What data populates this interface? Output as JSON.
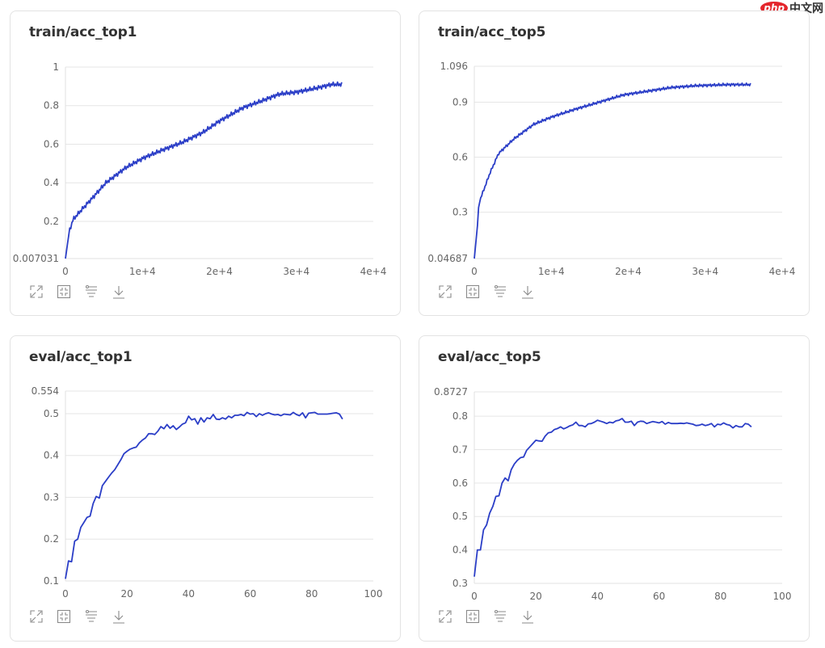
{
  "watermark": {
    "badge": "php",
    "text": "中文网"
  },
  "toolbar_icons": [
    "expand-icon",
    "fit-to-screen-icon",
    "filter-icon",
    "download-icon"
  ],
  "colors": {
    "series": "#2b3ec7",
    "grid": "#e6e6e6",
    "card_border": "#e3e3e3",
    "title": "#333333",
    "tick": "#666666"
  },
  "chart_data": [
    {
      "id": "train_top1",
      "type": "line",
      "title": "train/acc_top1",
      "xlabel": "",
      "ylabel": "",
      "xlim": [
        0,
        40000
      ],
      "ylim": [
        0.007031,
        1
      ],
      "x_ticks": [
        "0",
        "1e+4",
        "2e+4",
        "3e+4",
        "4e+4"
      ],
      "x_tick_values": [
        0,
        10000,
        20000,
        30000,
        40000
      ],
      "y_ticks": [
        "0.007031",
        "0.2",
        "0.4",
        "0.6",
        "0.8",
        "1"
      ],
      "y_tick_values": [
        0.007031,
        0.2,
        0.4,
        0.6,
        0.8,
        1
      ],
      "grid": true,
      "legend": null,
      "x": [
        0,
        500,
        1000,
        2100,
        3700,
        5250,
        7900,
        10200,
        12600,
        15200,
        17800,
        20000,
        23100,
        25200,
        27800,
        30000,
        32500,
        34600,
        35900
      ],
      "values": [
        0.007,
        0.15,
        0.21,
        0.26,
        0.33,
        0.4,
        0.48,
        0.53,
        0.57,
        0.61,
        0.66,
        0.72,
        0.79,
        0.82,
        0.86,
        0.87,
        0.89,
        0.91,
        0.91
      ],
      "noise": 0.012
    },
    {
      "id": "train_top5",
      "type": "line",
      "title": "train/acc_top5",
      "xlabel": "",
      "ylabel": "",
      "xlim": [
        0,
        40000
      ],
      "ylim": [
        0.04687,
        1.096
      ],
      "x_ticks": [
        "0",
        "1e+4",
        "2e+4",
        "3e+4",
        "4e+4"
      ],
      "x_tick_values": [
        0,
        10000,
        20000,
        30000,
        40000
      ],
      "y_ticks": [
        "0.04687",
        "0.3",
        "0.6",
        "0.9",
        "1.096"
      ],
      "y_tick_values": [
        0.04687,
        0.3,
        0.6,
        0.9,
        1.096
      ],
      "grid": true,
      "legend": null,
      "x": [
        0,
        400,
        600,
        1300,
        2000,
        3150,
        5150,
        7750,
        10100,
        13000,
        16200,
        19400,
        22500,
        25600,
        28800,
        33000,
        35900
      ],
      "values": [
        0.047,
        0.22,
        0.35,
        0.43,
        0.51,
        0.62,
        0.7,
        0.78,
        0.82,
        0.86,
        0.9,
        0.94,
        0.96,
        0.98,
        0.99,
        0.996,
        0.996
      ],
      "noise": 0.008
    },
    {
      "id": "eval_top1",
      "type": "line",
      "title": "eval/acc_top1",
      "xlabel": "",
      "ylabel": "",
      "xlim": [
        0,
        100
      ],
      "ylim": [
        0.1,
        0.554
      ],
      "x_ticks": [
        "0",
        "20",
        "40",
        "60",
        "80",
        "100"
      ],
      "x_tick_values": [
        0,
        20,
        40,
        60,
        80,
        100
      ],
      "y_ticks": [
        "0.1",
        "0.2",
        "0.3",
        "0.4",
        "0.5",
        "0.554"
      ],
      "y_tick_values": [
        0.1,
        0.2,
        0.3,
        0.4,
        0.5,
        0.554
      ],
      "grid": true,
      "legend": null,
      "x": [
        0,
        1,
        2,
        3,
        4,
        5,
        6,
        7,
        8,
        9,
        10,
        11,
        12,
        13,
        14,
        15,
        16,
        17,
        18,
        19,
        20,
        21,
        22,
        23,
        24,
        25,
        26,
        27,
        28,
        29,
        30,
        31,
        32,
        33,
        34,
        35,
        36,
        37,
        38,
        39,
        40,
        41,
        42,
        43,
        44,
        45,
        46,
        47,
        48,
        49,
        50,
        51,
        52,
        53,
        54,
        55,
        56,
        57,
        58,
        59,
        60,
        61,
        62,
        63,
        64,
        65,
        66,
        67,
        68,
        69,
        70,
        71,
        72,
        73,
        74,
        75,
        76,
        77,
        78,
        79,
        80,
        81,
        82,
        83,
        84,
        85,
        86,
        87,
        88,
        89,
        90
      ],
      "values": [
        0.105,
        0.148,
        0.146,
        0.195,
        0.2,
        0.228,
        0.24,
        0.252,
        0.255,
        0.285,
        0.302,
        0.298,
        0.328,
        0.338,
        0.348,
        0.358,
        0.366,
        0.378,
        0.39,
        0.404,
        0.41,
        0.415,
        0.418,
        0.42,
        0.43,
        0.437,
        0.442,
        0.452,
        0.452,
        0.45,
        0.458,
        0.469,
        0.464,
        0.474,
        0.465,
        0.471,
        0.462,
        0.468,
        0.475,
        0.478,
        0.494,
        0.485,
        0.488,
        0.475,
        0.49,
        0.48,
        0.49,
        0.488,
        0.498,
        0.487,
        0.486,
        0.49,
        0.487,
        0.494,
        0.49,
        0.496,
        0.496,
        0.498,
        0.495,
        0.503,
        0.499,
        0.5,
        0.493,
        0.5,
        0.496,
        0.5,
        0.502,
        0.499,
        0.497,
        0.498,
        0.495,
        0.499,
        0.498,
        0.497,
        0.503,
        0.498,
        0.495,
        0.502,
        0.49,
        0.501,
        0.502,
        0.503,
        0.499,
        0.499,
        0.499,
        0.499,
        0.5,
        0.501,
        0.502,
        0.499,
        0.487
      ]
    },
    {
      "id": "eval_top5",
      "type": "line",
      "title": "eval/acc_top5",
      "xlabel": "",
      "ylabel": "",
      "xlim": [
        0,
        100
      ],
      "ylim": [
        0.3,
        0.8727
      ],
      "x_ticks": [
        "0",
        "20",
        "40",
        "60",
        "80",
        "100"
      ],
      "x_tick_values": [
        0,
        20,
        40,
        60,
        80,
        100
      ],
      "y_ticks": [
        "0.3",
        "0.4",
        "0.5",
        "0.6",
        "0.7",
        "0.8",
        "0.8727"
      ],
      "y_tick_values": [
        0.3,
        0.4,
        0.5,
        0.6,
        0.7,
        0.8,
        0.8727
      ],
      "grid": true,
      "legend": null,
      "x": [
        0,
        1,
        2,
        3,
        4,
        5,
        6,
        7,
        8,
        9,
        10,
        11,
        12,
        13,
        14,
        15,
        16,
        17,
        18,
        19,
        20,
        21,
        22,
        23,
        24,
        25,
        26,
        27,
        28,
        29,
        30,
        31,
        32,
        33,
        34,
        35,
        36,
        37,
        38,
        39,
        40,
        41,
        42,
        43,
        44,
        45,
        46,
        47,
        48,
        49,
        50,
        51,
        52,
        53,
        54,
        55,
        56,
        57,
        58,
        59,
        60,
        61,
        62,
        63,
        64,
        65,
        66,
        67,
        68,
        69,
        70,
        71,
        72,
        73,
        74,
        75,
        76,
        77,
        78,
        79,
        80,
        81,
        82,
        83,
        84,
        85,
        86,
        87,
        88,
        89,
        90
      ],
      "values": [
        0.32,
        0.4,
        0.4,
        0.46,
        0.475,
        0.51,
        0.53,
        0.56,
        0.562,
        0.6,
        0.615,
        0.607,
        0.64,
        0.657,
        0.668,
        0.676,
        0.678,
        0.698,
        0.708,
        0.718,
        0.728,
        0.726,
        0.725,
        0.74,
        0.75,
        0.752,
        0.76,
        0.763,
        0.768,
        0.762,
        0.766,
        0.771,
        0.774,
        0.782,
        0.772,
        0.772,
        0.768,
        0.777,
        0.778,
        0.782,
        0.788,
        0.785,
        0.782,
        0.778,
        0.782,
        0.78,
        0.786,
        0.788,
        0.793,
        0.782,
        0.782,
        0.785,
        0.772,
        0.782,
        0.785,
        0.784,
        0.778,
        0.781,
        0.784,
        0.782,
        0.78,
        0.784,
        0.776,
        0.781,
        0.778,
        0.778,
        0.778,
        0.779,
        0.778,
        0.78,
        0.778,
        0.776,
        0.772,
        0.773,
        0.776,
        0.772,
        0.774,
        0.778,
        0.768,
        0.776,
        0.774,
        0.78,
        0.775,
        0.773,
        0.765,
        0.772,
        0.768,
        0.768,
        0.778,
        0.776,
        0.768
      ]
    }
  ]
}
